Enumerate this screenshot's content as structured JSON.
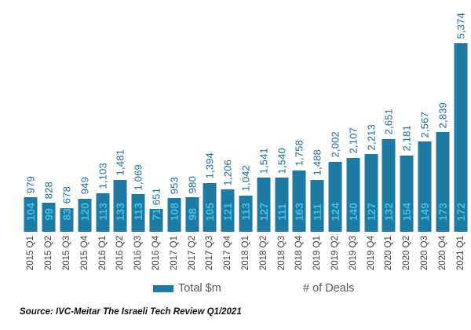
{
  "chart_data": {
    "type": "bar",
    "title": "",
    "xlabel": "",
    "ylabel": "",
    "ylim": [
      0,
      5374
    ],
    "grid": false,
    "legend_position": "bottom",
    "legend": [
      "Total $m",
      "# of Deals"
    ],
    "categories": [
      "2015 Q1",
      "2015 Q2",
      "2015 Q3",
      "2015 Q4",
      "2016 Q1",
      "2016 Q2",
      "2016 Q3",
      "2016 Q4",
      "2017 Q1",
      "2017 Q2",
      "2017 Q3",
      "2017 Q4",
      "2018 Q1",
      "2018 Q2",
      "2018 Q3",
      "2018 Q4",
      "2019 Q1",
      "2019 Q2",
      "2019 Q3",
      "2019 Q4",
      "2020 Q1",
      "2020 Q2",
      "2020 Q3",
      "2020 Q4",
      "2021 Q1"
    ],
    "series": [
      {
        "name": "Total $m",
        "values": [
          979,
          828,
          678,
          949,
          1103,
          1481,
          1069,
          651,
          953,
          980,
          1394,
          1206,
          1042,
          1541,
          1540,
          1758,
          1488,
          2002,
          2107,
          2213,
          2651,
          2181,
          2567,
          2839,
          5374
        ]
      },
      {
        "name": "# of Deals",
        "values": [
          104,
          99,
          83,
          120,
          113,
          133,
          113,
          71,
          108,
          98,
          105,
          121,
          113,
          127,
          111,
          163,
          111,
          124,
          140,
          127,
          132,
          154,
          149,
          173,
          172
        ]
      }
    ],
    "value_labels": [
      "979",
      "828",
      "678",
      "949",
      "1,103",
      "1,481",
      "1,069",
      "651",
      "953",
      "980",
      "1,394",
      "1,206",
      "1,042",
      "1,541",
      "1,540",
      "1,758",
      "1,488",
      "2,002",
      "2,107",
      "2,213",
      "2,651",
      "2,181",
      "2,567",
      "2,839",
      "5,374"
    ],
    "colors": {
      "bar": "#1F7AA3",
      "value_label": "#1E6C99",
      "deals_label": "#3EC1E4",
      "axis_label": "#3F3F3F",
      "legend_text": "#595959"
    }
  },
  "source": "Source: IVC-Meitar The Israeli Tech Review Q1/2021"
}
